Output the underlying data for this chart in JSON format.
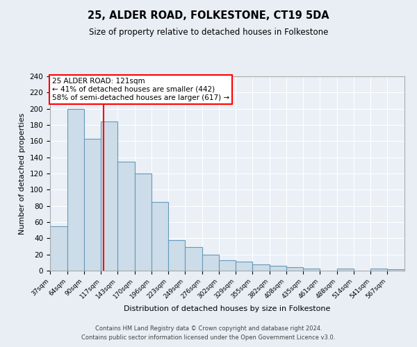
{
  "title": "25, ALDER ROAD, FOLKESTONE, CT19 5DA",
  "subtitle": "Size of property relative to detached houses in Folkestone",
  "xlabel": "Distribution of detached houses by size in Folkestone",
  "ylabel": "Number of detached properties",
  "bar_color": "#ccdce8",
  "bar_edge_color": "#6699bb",
  "background_color": "#e8eef4",
  "plot_bg_color": "#eaf0f6",
  "grid_color": "#ffffff",
  "red_line_x": 121,
  "annotation_title": "25 ALDER ROAD: 121sqm",
  "annotation_line1": "← 41% of detached houses are smaller (442)",
  "annotation_line2": "58% of semi-detached houses are larger (617) →",
  "bin_edges": [
    37,
    64,
    90,
    117,
    143,
    170,
    196,
    223,
    249,
    276,
    302,
    329,
    355,
    382,
    408,
    435,
    461,
    488,
    514,
    541,
    567,
    594
  ],
  "counts": [
    55,
    200,
    163,
    184,
    135,
    120,
    85,
    38,
    29,
    20,
    13,
    11,
    8,
    6,
    4,
    3,
    0,
    3,
    0,
    3,
    2
  ],
  "ylim": [
    0,
    240
  ],
  "yticks": [
    0,
    20,
    40,
    60,
    80,
    100,
    120,
    140,
    160,
    180,
    200,
    220,
    240
  ],
  "footer_line1": "Contains HM Land Registry data © Crown copyright and database right 2024.",
  "footer_line2": "Contains public sector information licensed under the Open Government Licence v3.0."
}
